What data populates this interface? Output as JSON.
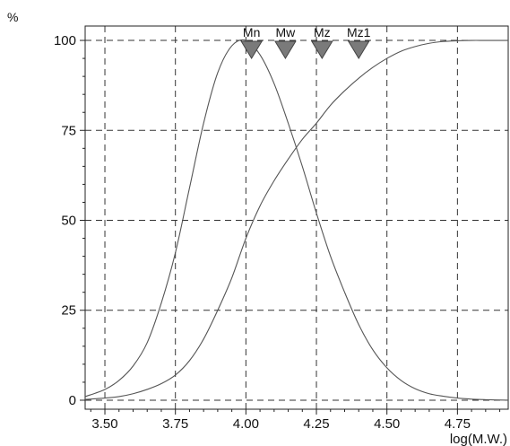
{
  "chart_data": {
    "type": "line",
    "title": "",
    "xlabel": "log(M.W.)",
    "ylabel": "%",
    "xlim": [
      3.43,
      4.93
    ],
    "ylim": [
      -2.5,
      104
    ],
    "x_ticks": [
      3.5,
      3.75,
      4.0,
      4.25,
      4.5,
      4.75
    ],
    "x_tick_labels": [
      "3.50",
      "3.75",
      "4.00",
      "4.25",
      "4.50",
      "4.75"
    ],
    "y_ticks": [
      0,
      25,
      50,
      75,
      100
    ],
    "y_tick_labels": [
      "0",
      "25",
      "50",
      "75",
      "100"
    ],
    "grid": true,
    "grid_style": "dashed",
    "line_color": "#555555",
    "marker_color": "#7a7a7a",
    "series": [
      {
        "x": [
          3.43,
          3.5,
          3.55,
          3.6,
          3.65,
          3.7,
          3.75,
          3.8,
          3.85,
          3.9,
          3.95,
          4.0,
          4.05,
          4.1,
          4.15,
          4.2,
          4.25,
          4.3,
          4.35,
          4.4,
          4.45,
          4.5,
          4.55,
          4.6,
          4.65,
          4.7,
          4.75,
          4.8,
          4.85,
          4.93
        ],
        "y": [
          1,
          3,
          5.5,
          9.5,
          16,
          27,
          41,
          59,
          77,
          91,
          98.5,
          100,
          96,
          88,
          77,
          65,
          52,
          40,
          30,
          21,
          14,
          9,
          5.5,
          3.2,
          1.8,
          1.1,
          0.6,
          0.3,
          0.15,
          0
        ]
      },
      {
        "x": [
          3.43,
          3.5,
          3.55,
          3.6,
          3.65,
          3.7,
          3.75,
          3.8,
          3.85,
          3.9,
          3.95,
          4.0,
          4.05,
          4.1,
          4.15,
          4.2,
          4.25,
          4.3,
          4.35,
          4.4,
          4.45,
          4.5,
          4.55,
          4.6,
          4.65,
          4.7,
          4.75,
          4.8,
          4.85,
          4.93
        ],
        "y": [
          0.2,
          0.6,
          1,
          1.8,
          3,
          4.6,
          7,
          11,
          17,
          25,
          34,
          45,
          54,
          61,
          67,
          72.5,
          77,
          82,
          86,
          89.5,
          92.5,
          95,
          97,
          98.3,
          99.2,
          99.7,
          99.9,
          100,
          100,
          100
        ]
      }
    ],
    "markers": [
      {
        "label": "Mn",
        "x": 4.02
      },
      {
        "label": "Mw",
        "x": 4.14
      },
      {
        "label": "Mz",
        "x": 4.27
      },
      {
        "label": "Mz1",
        "x": 4.4
      }
    ]
  }
}
